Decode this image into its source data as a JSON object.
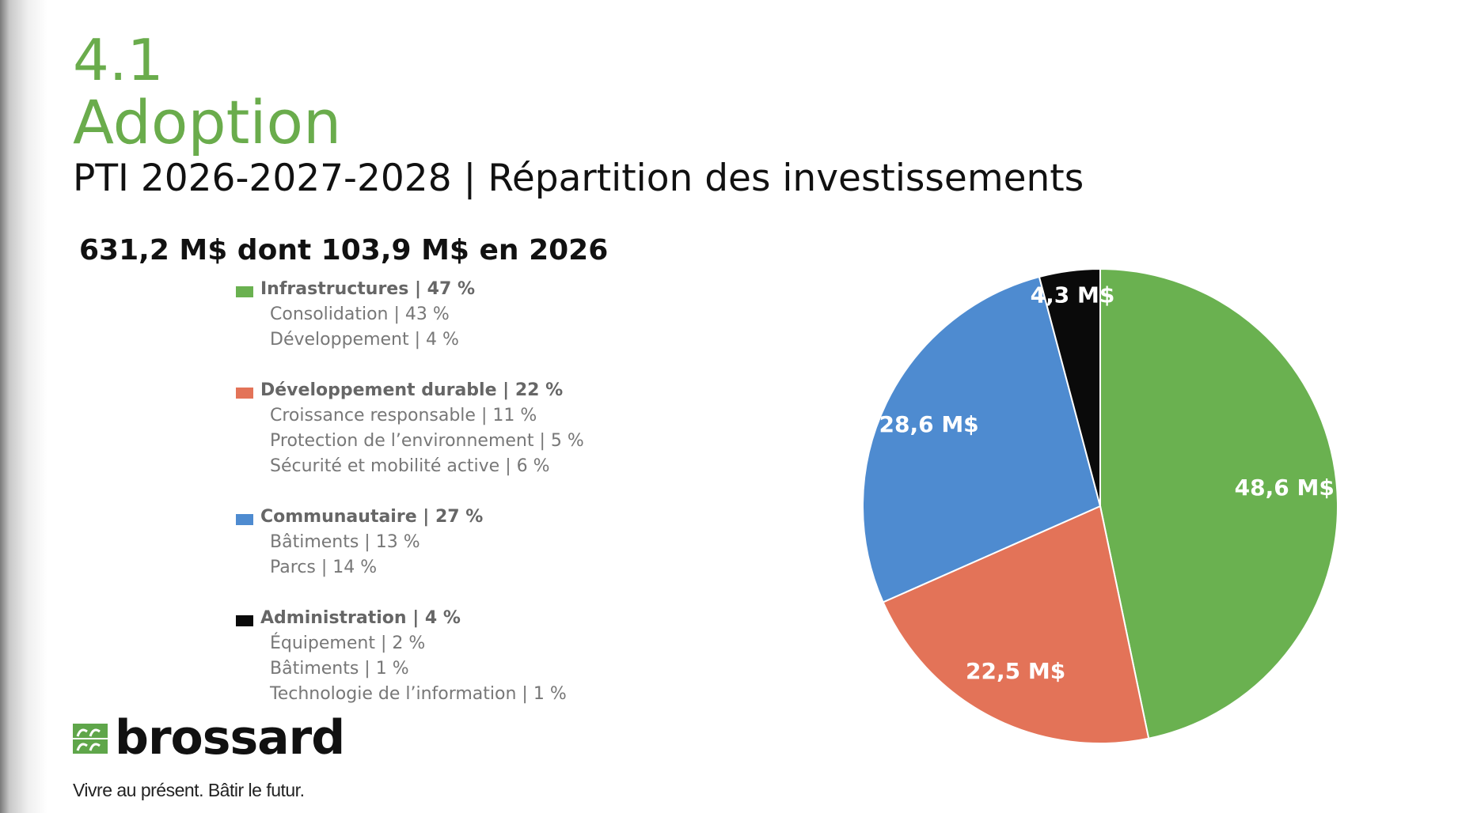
{
  "section_number": "4.1",
  "section_title": "Adoption",
  "subtitle": "PTI 2026-2027-2028 | Répartition des investissements",
  "headline": "631,2 M$ dont 103,9 M$ en 2026",
  "legend": [
    {
      "label": "Infrastructures | 47 %",
      "color": "#6ab150",
      "items": [
        "Consolidation | 43 %",
        "Développement | 4 %"
      ]
    },
    {
      "label": "Développement durable | 22 %",
      "color": "#e37358",
      "items": [
        "Croissance responsable | 11 %",
        "Protection de l’environnement | 5 %",
        "Sécurité et mobilité active | 6 %"
      ]
    },
    {
      "label": "Communautaire | 27 %",
      "color": "#4e8bd0",
      "items": [
        "Bâtiments | 13 %",
        "Parcs | 14 %"
      ]
    },
    {
      "label": "Administration | 4 %",
      "color": "#0a0a0a",
      "items": [
        "Équipement | 2 %",
        "Bâtiments | 1 %",
        "Technologie de l’information | 1 %"
      ]
    }
  ],
  "chart_data": {
    "type": "pie",
    "categories": [
      "Infrastructures",
      "Développement durable",
      "Communautaire",
      "Administration"
    ],
    "values": [
      48.6,
      22.5,
      28.6,
      4.3
    ],
    "unit": "M$",
    "labels": [
      "48,6 M$",
      "22,5 M$",
      "28,6 M$",
      "4,3 M$"
    ],
    "colors": [
      "#6ab150",
      "#e37358",
      "#4e8bd0",
      "#0a0a0a"
    ],
    "start": "top",
    "direction": "clockwise"
  },
  "logo": {
    "brand": "brossard",
    "tagline": "Vivre au présent. Bâtir le futur."
  }
}
